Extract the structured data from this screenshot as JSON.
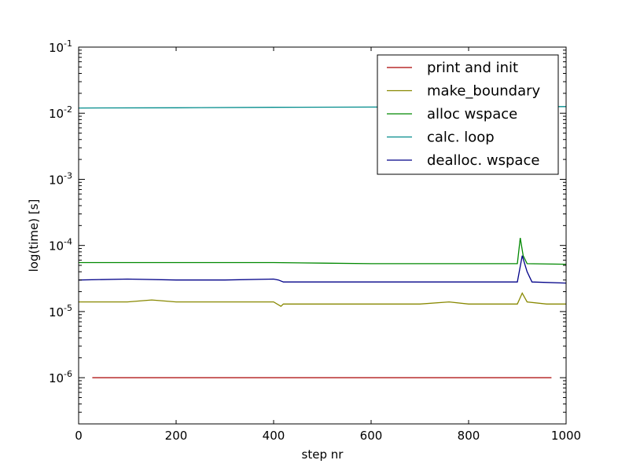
{
  "chart_data": {
    "type": "line",
    "xlabel": "step nr",
    "ylabel": "log(time) [s]",
    "xlim": [
      0,
      1000
    ],
    "ylim": [
      2e-07,
      0.1
    ],
    "yscale": "log",
    "grid": false,
    "legend_position": "top-right",
    "x_ticks": [
      {
        "value": 0,
        "label": "0"
      },
      {
        "value": 200,
        "label": "200"
      },
      {
        "value": 400,
        "label": "400"
      },
      {
        "value": 600,
        "label": "600"
      },
      {
        "value": 800,
        "label": "800"
      },
      {
        "value": 1000,
        "label": "1000"
      }
    ],
    "y_ticks": [
      {
        "value": 1e-06,
        "base": "10",
        "exp": "-6"
      },
      {
        "value": 1e-05,
        "base": "10",
        "exp": "-5"
      },
      {
        "value": 0.0001,
        "base": "10",
        "exp": "-4"
      },
      {
        "value": 0.001,
        "base": "10",
        "exp": "-3"
      },
      {
        "value": 0.01,
        "base": "10",
        "exp": "-2"
      },
      {
        "value": 0.1,
        "base": "10",
        "exp": "-1"
      }
    ],
    "series": [
      {
        "name": "print and init",
        "color": "#aa0000",
        "x": [
          28,
          970
        ],
        "y": [
          1e-06,
          1e-06
        ]
      },
      {
        "name": "make_boundary",
        "color": "#888800",
        "x": [
          0,
          50,
          100,
          150,
          200,
          250,
          300,
          350,
          400,
          415,
          420,
          500,
          600,
          700,
          760,
          800,
          900,
          910,
          920,
          960,
          1000
        ],
        "y": [
          1.4e-05,
          1.4e-05,
          1.4e-05,
          1.5e-05,
          1.4e-05,
          1.4e-05,
          1.4e-05,
          1.4e-05,
          1.4e-05,
          1.2e-05,
          1.3e-05,
          1.3e-05,
          1.3e-05,
          1.3e-05,
          1.4e-05,
          1.3e-05,
          1.3e-05,
          1.9e-05,
          1.4e-05,
          1.3e-05,
          1.3e-05
        ]
      },
      {
        "name": "alloc wspace",
        "color": "#008800",
        "x": [
          0,
          100,
          200,
          300,
          400,
          500,
          600,
          700,
          800,
          900,
          906,
          912,
          920,
          1000
        ],
        "y": [
          5.5e-05,
          5.5e-05,
          5.5e-05,
          5.5e-05,
          5.5e-05,
          5.4e-05,
          5.3e-05,
          5.3e-05,
          5.3e-05,
          5.3e-05,
          0.00013,
          7e-05,
          5.3e-05,
          5.2e-05
        ]
      },
      {
        "name": "calc. loop",
        "color": "#008b8b",
        "x": [
          0,
          200,
          400,
          600,
          800,
          1000
        ],
        "y": [
          0.012,
          0.0121,
          0.0123,
          0.0124,
          0.0125,
          0.0126
        ]
      },
      {
        "name": "dealloc. wspace",
        "color": "#000088",
        "x": [
          0,
          100,
          200,
          300,
          400,
          410,
          420,
          500,
          600,
          700,
          800,
          900,
          910,
          920,
          930,
          1000
        ],
        "y": [
          3e-05,
          3.1e-05,
          3e-05,
          3e-05,
          3.1e-05,
          3e-05,
          2.8e-05,
          2.8e-05,
          2.8e-05,
          2.8e-05,
          2.8e-05,
          2.8e-05,
          7e-05,
          4e-05,
          2.8e-05,
          2.7e-05
        ]
      }
    ]
  }
}
